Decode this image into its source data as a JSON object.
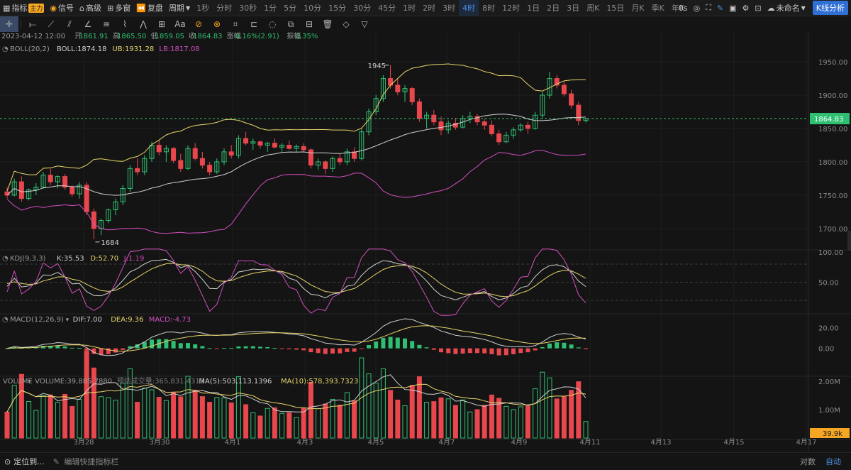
{
  "topbar": {
    "indicators_label": "指标",
    "main_tag": "主力",
    "signal_label": "信号",
    "advanced_label": "高级",
    "multiwindow_label": "多窗",
    "replay_label": "复盘",
    "period_label": "周期",
    "periods": [
      "1秒",
      "分时",
      "30秒",
      "1分",
      "5分",
      "10分",
      "15分",
      "30分",
      "45分",
      "1时",
      "2时",
      "3时",
      "4时",
      "8时",
      "12时",
      "1日",
      "2日",
      "3日",
      "周K",
      "15日",
      "月K",
      "季K",
      "年K"
    ],
    "active_period": "4时",
    "timer": "0s",
    "layout_name": "未命名",
    "kline_analysis": "K线分析"
  },
  "bottombar": {
    "locate": "定位到...",
    "edit_shortcut": "编辑快捷指标栏",
    "log": "对数",
    "auto": "自动"
  },
  "info_line": {
    "date": "2023-04-12 12:00",
    "open_label": "开",
    "open": "1861.91",
    "high_label": "高",
    "high": "1865.50",
    "low_label": "低",
    "low": "1859.05",
    "close_label": "收",
    "close": "1864.83",
    "change_label": "涨幅",
    "change": "0.16%(2.91)",
    "amplitude_label": "振幅",
    "amplitude": "0.35%"
  },
  "legends": {
    "boll": {
      "name": "BOLL(20,2)",
      "mid": "BOLL:1874.18",
      "ub": "UB:1931.28",
      "lb": "LB:1817.08"
    },
    "kdj": {
      "name": "KDJ(9,3,3)",
      "k": "K:35.53",
      "d": "D:52.70",
      "j": "J:1.19"
    },
    "macd": {
      "name": "MACD(12,26,9)",
      "dif": "DIF:7.00",
      "dea": "DEA:9.36",
      "macd": "MACD:-4.73"
    },
    "volume": {
      "name": "VOLUME",
      "vol": "VOLUME:39,885.7880",
      "est": "预估成交量:365,831.4313",
      "ma5": "MA(5):503,113.1396",
      "ma10": "MA(10):578,393.7323"
    }
  },
  "colors": {
    "bg": "#141414",
    "up": "#2fbf71",
    "down": "#e8474d",
    "boll_mid": "#d0d0d0",
    "boll_ub": "#e8d56a",
    "boll_lb": "#d24fc0",
    "kdj_k": "#d0d0d0",
    "kdj_d": "#e8d56a",
    "kdj_j": "#d24fc0",
    "price_tag": "#2fbf71",
    "vol_tag": "#f5a623"
  },
  "price_axis": [
    "1950.00",
    "1900.00",
    "1850.00",
    "1800.00",
    "1750.00",
    "1700.00"
  ],
  "kdj_axis": [
    "100.00",
    "50.00",
    "0.00"
  ],
  "macd_axis": [
    "20.00",
    "0.00"
  ],
  "volume_axis": [
    "2.00M",
    "1.00M"
  ],
  "current_price_tag": "1864.83",
  "current_volume_tag": "39.9k",
  "annotations": {
    "high": "1945",
    "low": "1684"
  },
  "chart_data": {
    "type": "candlestick",
    "interval": "4H",
    "x_labels": [
      "3月28",
      "3月30",
      "4月1",
      "4月3",
      "4月5",
      "4月7",
      "4月9",
      "4月11",
      "4月13",
      "4月15",
      "4月17"
    ],
    "ohlc": [
      [
        1755,
        1762,
        1745,
        1750
      ],
      [
        1750,
        1775,
        1748,
        1770
      ],
      [
        1770,
        1778,
        1740,
        1745
      ],
      [
        1745,
        1760,
        1742,
        1758
      ],
      [
        1758,
        1768,
        1750,
        1762
      ],
      [
        1762,
        1785,
        1760,
        1780
      ],
      [
        1780,
        1790,
        1765,
        1770
      ],
      [
        1770,
        1780,
        1760,
        1778
      ],
      [
        1778,
        1782,
        1758,
        1762
      ],
      [
        1762,
        1765,
        1748,
        1752
      ],
      [
        1752,
        1770,
        1745,
        1765
      ],
      [
        1765,
        1770,
        1720,
        1725
      ],
      [
        1725,
        1730,
        1684,
        1700
      ],
      [
        1700,
        1715,
        1690,
        1712
      ],
      [
        1712,
        1730,
        1708,
        1728
      ],
      [
        1728,
        1745,
        1720,
        1740
      ],
      [
        1740,
        1765,
        1735,
        1760
      ],
      [
        1760,
        1795,
        1755,
        1790
      ],
      [
        1790,
        1805,
        1780,
        1785
      ],
      [
        1785,
        1810,
        1780,
        1805
      ],
      [
        1805,
        1830,
        1800,
        1825
      ],
      [
        1825,
        1832,
        1810,
        1815
      ],
      [
        1815,
        1825,
        1800,
        1820
      ],
      [
        1820,
        1822,
        1798,
        1802
      ],
      [
        1802,
        1812,
        1785,
        1790
      ],
      [
        1790,
        1825,
        1788,
        1820
      ],
      [
        1820,
        1828,
        1802,
        1805
      ],
      [
        1805,
        1815,
        1790,
        1795
      ],
      [
        1795,
        1800,
        1780,
        1785
      ],
      [
        1785,
        1805,
        1782,
        1800
      ],
      [
        1800,
        1820,
        1795,
        1815
      ],
      [
        1815,
        1825,
        1805,
        1810
      ],
      [
        1810,
        1840,
        1805,
        1835
      ],
      [
        1835,
        1845,
        1825,
        1828
      ],
      [
        1828,
        1835,
        1818,
        1830
      ],
      [
        1830,
        1832,
        1820,
        1825
      ],
      [
        1825,
        1830,
        1815,
        1828
      ],
      [
        1828,
        1835,
        1820,
        1822
      ],
      [
        1822,
        1828,
        1815,
        1825
      ],
      [
        1825,
        1832,
        1818,
        1820
      ],
      [
        1820,
        1826,
        1814,
        1823
      ],
      [
        1823,
        1828,
        1815,
        1818
      ],
      [
        1818,
        1820,
        1790,
        1795
      ],
      [
        1795,
        1805,
        1788,
        1800
      ],
      [
        1800,
        1802,
        1782,
        1790
      ],
      [
        1790,
        1808,
        1785,
        1805
      ],
      [
        1805,
        1812,
        1795,
        1800
      ],
      [
        1800,
        1820,
        1795,
        1815
      ],
      [
        1815,
        1822,
        1800,
        1805
      ],
      [
        1805,
        1850,
        1802,
        1845
      ],
      [
        1845,
        1880,
        1840,
        1875
      ],
      [
        1875,
        1900,
        1870,
        1895
      ],
      [
        1895,
        1930,
        1890,
        1925
      ],
      [
        1925,
        1945,
        1910,
        1915
      ],
      [
        1915,
        1925,
        1900,
        1905
      ],
      [
        1905,
        1915,
        1890,
        1910
      ],
      [
        1910,
        1912,
        1885,
        1890
      ],
      [
        1890,
        1895,
        1860,
        1865
      ],
      [
        1865,
        1875,
        1850,
        1870
      ],
      [
        1870,
        1878,
        1855,
        1860
      ],
      [
        1860,
        1868,
        1840,
        1848
      ],
      [
        1848,
        1862,
        1842,
        1858
      ],
      [
        1858,
        1866,
        1848,
        1852
      ],
      [
        1852,
        1870,
        1850,
        1865
      ],
      [
        1865,
        1875,
        1858,
        1868
      ],
      [
        1868,
        1872,
        1855,
        1860
      ],
      [
        1860,
        1865,
        1848,
        1855
      ],
      [
        1855,
        1862,
        1838,
        1842
      ],
      [
        1842,
        1848,
        1825,
        1830
      ],
      [
        1830,
        1845,
        1828,
        1840
      ],
      [
        1840,
        1852,
        1835,
        1848
      ],
      [
        1848,
        1858,
        1845,
        1855
      ],
      [
        1855,
        1860,
        1842,
        1850
      ],
      [
        1850,
        1875,
        1848,
        1870
      ],
      [
        1870,
        1905,
        1865,
        1900
      ],
      [
        1900,
        1935,
        1895,
        1925
      ],
      [
        1925,
        1930,
        1910,
        1915
      ],
      [
        1915,
        1920,
        1898,
        1902
      ],
      [
        1902,
        1908,
        1880,
        1885
      ],
      [
        1885,
        1890,
        1855,
        1862
      ],
      [
        1862,
        1866,
        1859,
        1865
      ]
    ],
    "price_ylim": [
      1670,
      1965
    ],
    "indicators": [
      "BOLL(20,2)",
      "KDJ(9,3,3)",
      "MACD(12,26,9)",
      "VOLUME"
    ]
  }
}
